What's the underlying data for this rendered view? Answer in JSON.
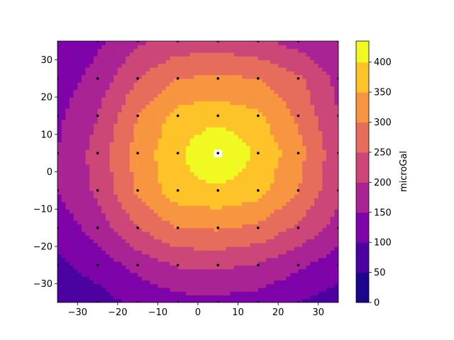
{
  "chart_data": {
    "type": "contour",
    "title": "",
    "xlabel": "",
    "ylabel": "",
    "xlim": [
      -35,
      35
    ],
    "ylim": [
      -35,
      35
    ],
    "xticks": [
      -30,
      -20,
      -10,
      0,
      10,
      20,
      30
    ],
    "yticks": [
      -30,
      -20,
      -10,
      0,
      10,
      20,
      30
    ],
    "colormap": "plasma",
    "colorbar": {
      "label": "microGal",
      "range": [
        0,
        435
      ],
      "ticks": [
        0,
        50,
        100,
        150,
        200,
        250,
        300,
        350,
        400
      ]
    },
    "levels": [
      0,
      50,
      100,
      150,
      200,
      250,
      300,
      350,
      400,
      450
    ],
    "level_colors": [
      "#1b068c",
      "#4c02a1",
      "#7e03a8",
      "#a92395",
      "#cc4778",
      "#e66c5c",
      "#f89540",
      "#fdc328",
      "#f0f921"
    ],
    "grid": {
      "x": [
        -35,
        -25,
        -15,
        -5,
        5,
        15,
        25,
        35
      ],
      "y": [
        -35,
        -25,
        -15,
        -5,
        5,
        15,
        25,
        35
      ],
      "values": [
        [
          60,
          80,
          110,
          130,
          135,
          125,
          100,
          75
        ],
        [
          90,
          120,
          165,
          205,
          210,
          195,
          160,
          120
        ],
        [
          120,
          170,
          250,
          300,
          305,
          290,
          240,
          180
        ],
        [
          150,
          210,
          310,
          380,
          390,
          370,
          300,
          210
        ],
        [
          150,
          220,
          320,
          390,
          460,
          390,
          320,
          215
        ],
        [
          140,
          200,
          300,
          370,
          380,
          360,
          290,
          200
        ],
        [
          120,
          170,
          250,
          300,
          310,
          300,
          260,
          185
        ],
        [
          100,
          140,
          190,
          220,
          225,
          210,
          180,
          150
        ]
      ]
    },
    "sample_points": {
      "x": [
        -35,
        -25,
        -15,
        -5,
        5,
        15,
        25,
        35
      ],
      "y": [
        -35,
        -25,
        -15,
        -5,
        5,
        15,
        25,
        35
      ]
    }
  }
}
